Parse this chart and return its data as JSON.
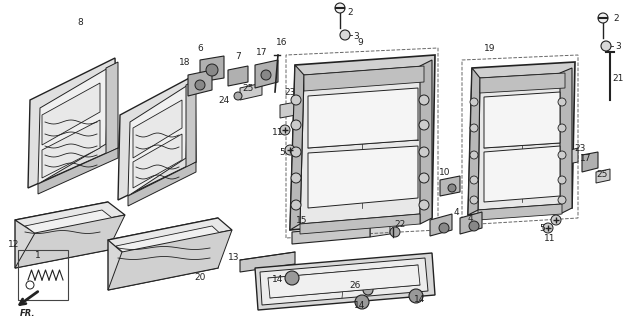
{
  "bg_color": "#ffffff",
  "line_color": "#222222",
  "fig_width": 6.36,
  "fig_height": 3.2,
  "dpi": 100
}
